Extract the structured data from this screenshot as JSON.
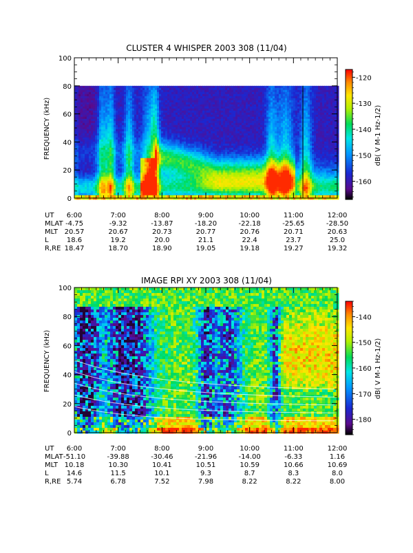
{
  "chart_data": [
    {
      "type": "heatmap",
      "title": "CLUSTER 4 WHISPER 2003 308 (11/04)",
      "ylabel": "FREQUENCY (kHz)",
      "ylim": [
        0,
        100
      ],
      "y_ticks": [
        "0",
        "20",
        "40",
        "60",
        "80",
        "100"
      ],
      "data_ymax": 80,
      "xlim_hours": [
        6,
        12
      ],
      "x_tick_labels": [
        "6:00",
        "7:00",
        "8:00",
        "9:00",
        "10:00",
        "11:00",
        "12:00"
      ],
      "ephemeris": [
        {
          "label": "UT",
          "values": [
            "6:00",
            "7:00",
            "8:00",
            "9:00",
            "10:00",
            "11:00",
            "12:00"
          ]
        },
        {
          "label": "MLAT",
          "values": [
            "-4.75",
            "-9.32",
            "-13.87",
            "-18.20",
            "-22.18",
            "-25.65",
            "-28.50"
          ]
        },
        {
          "label": "MLT",
          "values": [
            "20.57",
            "20.67",
            "20.73",
            "20.77",
            "20.76",
            "20.71",
            "20.63"
          ]
        },
        {
          "label": "L",
          "values": [
            "18.6",
            "19.2",
            "20.0",
            "21.1",
            "22.4",
            "23.7",
            "25.0"
          ]
        },
        {
          "label": "R,RE",
          "values": [
            "18.47",
            "18.70",
            "18.90",
            "19.05",
            "19.18",
            "19.27",
            "19.32"
          ]
        }
      ],
      "colorbar": {
        "label": "dB( V M-1 Hz-1/2)",
        "ticks": [
          "-120",
          "-130",
          "-140",
          "-150",
          "-160"
        ],
        "range": [
          -167,
          -117
        ]
      }
    },
    {
      "type": "heatmap",
      "title": "IMAGE RPI XY 2003 308 (11/04)",
      "ylabel": "FREQUENCY (kHz)",
      "ylim": [
        0,
        100
      ],
      "y_ticks": [
        "0",
        "20",
        "40",
        "60",
        "80",
        "100"
      ],
      "data_ymax": 100,
      "xlim_hours": [
        6,
        12
      ],
      "x_tick_labels": [
        "6:00",
        "7:00",
        "8:00",
        "9:00",
        "10:00",
        "11:00",
        "12:00"
      ],
      "ephemeris": [
        {
          "label": "UT",
          "values": [
            "6:00",
            "7:00",
            "8:00",
            "9:00",
            "10:00",
            "11:00",
            "12:00"
          ]
        },
        {
          "label": "MLAT",
          "values": [
            "-51.10",
            "-39.88",
            "-30.46",
            "-21.96",
            "-14.00",
            "-6.33",
            "1.16"
          ]
        },
        {
          "label": "MLT",
          "values": [
            "10.18",
            "10.30",
            "10.41",
            "10.51",
            "10.59",
            "10.66",
            "10.69"
          ]
        },
        {
          "label": "L",
          "values": [
            "14.6",
            "11.5",
            "10.1",
            "9.3",
            "8.7",
            "8.3",
            "8.0"
          ]
        },
        {
          "label": "R,RE",
          "values": [
            "5.74",
            "6.78",
            "7.52",
            "7.98",
            "8.22",
            "8.22",
            "8.00"
          ]
        }
      ],
      "colorbar": {
        "label": "dB( V M-1 Hz-1/2)",
        "ticks": [
          "-140",
          "-150",
          "-160",
          "-170",
          "-180"
        ],
        "range": [
          -186,
          -134
        ]
      }
    }
  ]
}
